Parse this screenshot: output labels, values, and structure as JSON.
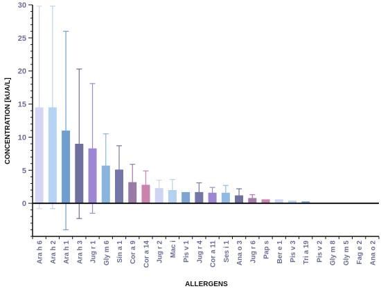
{
  "chart_data": {
    "type": "bar",
    "xlabel": "ALLERGENS",
    "ylabel": "CONCENTRATION [kUA/L]",
    "ylim": [
      -5,
      30
    ],
    "yticks": [
      0,
      5,
      10,
      15,
      20,
      25,
      30
    ],
    "grid": false,
    "categories": [
      "Ara h 6",
      "Ara h 2",
      "Ara h 1",
      "Ara h 3",
      "Jug r 1",
      "Gly m 6",
      "Sin a 1",
      "Cor a 9",
      "Cor a 14",
      "Jug r 2",
      "Mac i",
      "Pis v 1",
      "Jug r 4",
      "Cor a 11",
      "Ses i 1",
      "Ana o 3",
      "Jug r 6",
      "Pap s",
      "Ber e 1",
      "Pis v 3",
      "Tri a 19",
      "Pis v 2",
      "Gly m 8",
      "Gly m 5",
      "Fag e 2",
      "Ana o 2"
    ],
    "values": [
      14.5,
      14.5,
      11.0,
      9.0,
      8.3,
      5.7,
      5.1,
      3.2,
      2.8,
      2.3,
      2.0,
      1.7,
      1.7,
      1.6,
      1.6,
      1.2,
      0.8,
      0.6,
      0.6,
      0.4,
      0.3,
      0,
      0,
      0,
      0,
      0
    ],
    "error": [
      15.3,
      15.3,
      15.0,
      11.3,
      9.8,
      4.8,
      3.6,
      2.7,
      2.1,
      1.2,
      1.6,
      0,
      1.4,
      0.8,
      1.1,
      1.0,
      0.5,
      0,
      0,
      0,
      0,
      0,
      0,
      0,
      0,
      0
    ],
    "colors": [
      "#d4d4f5",
      "#b5d3f3",
      "#6e9fd0",
      "#6e709f",
      "#9d87d5",
      "#88b5e0",
      "#7476a8",
      "#9a7ba8",
      "#cb82ad",
      "#d0d4f2",
      "#b3d1f0",
      "#7ca5d5",
      "#7476a8",
      "#9d87d5",
      "#8fbbe3",
      "#6e709f",
      "#a879ad",
      "#cb82ad",
      "#d0d4f2",
      "#b3d1f0",
      "#7ca5d5",
      "#7476a8",
      "#9d87d5",
      "#8fbbe3",
      "#6e709f",
      "#a879ad"
    ]
  }
}
